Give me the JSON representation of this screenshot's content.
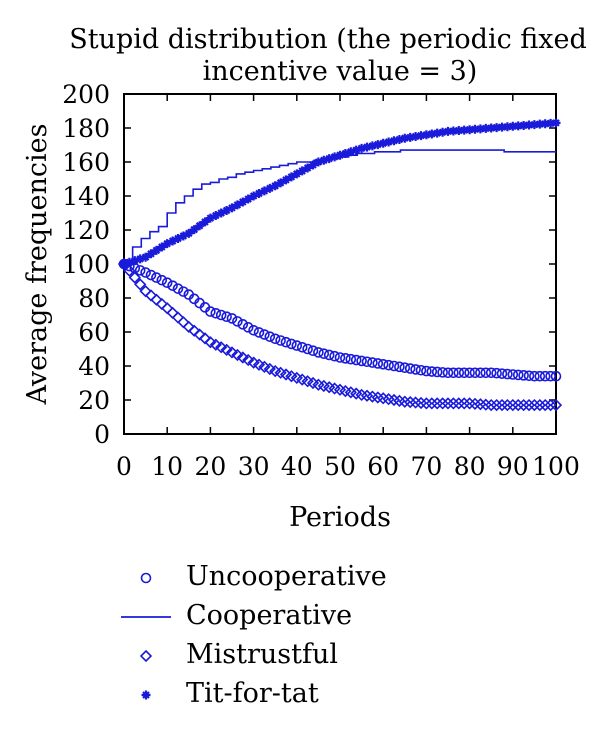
{
  "chart_data": {
    "type": "line",
    "title_line1": "Stupid distribution (the periodic fixed",
    "title_line2": "incentive value = 3)",
    "xlabel": "Periods",
    "ylabel": "Average frequencies",
    "xlim": [
      0,
      100
    ],
    "ylim": [
      0,
      200
    ],
    "xticks": [
      "0",
      "10",
      "20",
      "30",
      "40",
      "50",
      "60",
      "70",
      "80",
      "90",
      "100"
    ],
    "yticks": [
      "0",
      "20",
      "40",
      "60",
      "80",
      "100",
      "120",
      "140",
      "160",
      "180",
      "200"
    ],
    "series_color": "#1a1adb",
    "series": [
      {
        "name": "Uncooperative",
        "marker": "circle",
        "x": [
          0,
          5,
          10,
          15,
          20,
          25,
          30,
          35,
          40,
          45,
          50,
          55,
          60,
          65,
          70,
          75,
          80,
          85,
          90,
          95,
          100
        ],
        "y": [
          100,
          95,
          89,
          82,
          72,
          68,
          61,
          56,
          52,
          48,
          45,
          43,
          41,
          39,
          37,
          36,
          36,
          36,
          35,
          34,
          34
        ]
      },
      {
        "name": "Cooperative",
        "marker": "line",
        "x": [
          0,
          2,
          5,
          8,
          10,
          12,
          15,
          18,
          20,
          25,
          30,
          35,
          40,
          45,
          50,
          55,
          60,
          65,
          70,
          75,
          80,
          85,
          90,
          95,
          100
        ],
        "y": [
          100,
          110,
          118,
          122,
          130,
          136,
          142,
          147,
          148,
          152,
          155,
          158,
          160,
          161,
          163,
          165,
          166,
          167,
          167,
          167,
          167,
          167,
          166,
          166,
          166
        ]
      },
      {
        "name": "Mistrustful",
        "marker": "diamond",
        "x": [
          0,
          5,
          10,
          15,
          20,
          25,
          30,
          35,
          40,
          45,
          50,
          55,
          60,
          65,
          70,
          75,
          80,
          85,
          90,
          95,
          100
        ],
        "y": [
          100,
          84,
          74,
          63,
          54,
          48,
          42,
          37,
          33,
          29,
          26,
          23,
          21,
          19,
          18,
          18,
          18,
          17,
          17,
          17,
          17
        ]
      },
      {
        "name": "Tit-for-tat",
        "marker": "star",
        "x": [
          0,
          5,
          10,
          15,
          20,
          25,
          30,
          35,
          40,
          45,
          50,
          55,
          60,
          65,
          70,
          75,
          80,
          85,
          90,
          95,
          100
        ],
        "y": [
          100,
          104,
          112,
          118,
          127,
          133,
          140,
          146,
          153,
          160,
          164,
          168,
          171,
          174,
          176,
          178,
          179,
          180,
          181,
          182,
          183
        ]
      }
    ],
    "legend": [
      {
        "label": "Uncooperative",
        "marker": "circle"
      },
      {
        "label": "Cooperative",
        "marker": "line"
      },
      {
        "label": "Mistrustful",
        "marker": "diamond"
      },
      {
        "label": "Tit-for-tat",
        "marker": "star"
      }
    ]
  }
}
